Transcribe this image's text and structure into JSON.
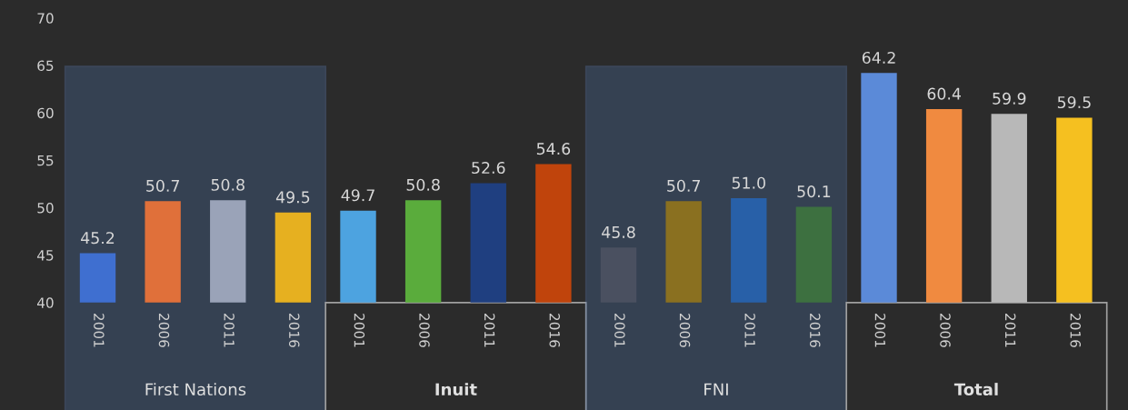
{
  "chart_data": {
    "type": "bar",
    "categories": [
      "2001",
      "2006",
      "2011",
      "2016",
      "2001",
      "2006",
      "2011",
      "2016",
      "2001",
      "2006",
      "2011",
      "2016",
      "2001",
      "2006",
      "2011",
      "2016"
    ],
    "values": [
      45.2,
      50.7,
      50.8,
      49.5,
      49.7,
      50.8,
      52.6,
      54.6,
      45.8,
      50.7,
      51.0,
      50.1,
      64.2,
      60.4,
      59.9,
      59.5
    ],
    "colors": [
      "#3f6fd0",
      "#e0703a",
      "#9aa3b8",
      "#e6b020",
      "#4da3e0",
      "#5aac3c",
      "#1f3f80",
      "#c0440c",
      "#4a5060",
      "#8a7020",
      "#2860a8",
      "#3d7040",
      "#5b8ad8",
      "#f08a40",
      "#b8b8b8",
      "#f5c020"
    ],
    "value_labels": [
      "45.2",
      "50.7",
      "50.8",
      "49.5",
      "49.7",
      "50.8",
      "52.6",
      "54.6",
      "45.8",
      "50.7",
      "51.0",
      "50.1",
      "64.2",
      "60.4",
      "59.9",
      "59.5"
    ],
    "ylim": [
      40,
      70
    ],
    "yticks": [
      40,
      45,
      50,
      55,
      60,
      65,
      70
    ],
    "annotations": [
      "First Nations",
      "Inuit",
      "FNI",
      "Total"
    ],
    "grid": false,
    "legend": false
  }
}
